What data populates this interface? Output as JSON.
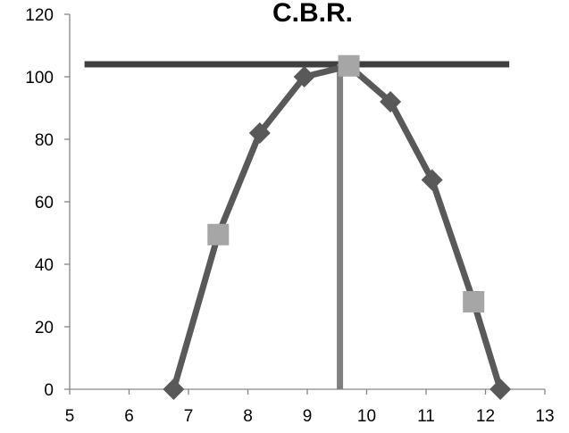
{
  "chart_data": {
    "type": "scatter",
    "title": "C.B.R.",
    "xlabel": "",
    "ylabel": "",
    "xlim": [
      5,
      13
    ],
    "ylim": [
      0,
      120
    ],
    "x_ticks": [
      5,
      6,
      7,
      8,
      9,
      10,
      11,
      12,
      13
    ],
    "y_ticks": [
      0,
      20,
      40,
      60,
      80,
      100,
      120
    ],
    "grid": false,
    "legend": "none",
    "series": [
      {
        "color": "#595959",
        "marker": "diamond",
        "x": [
          6.75,
          7.5,
          8.2,
          8.95,
          9.7,
          10.4,
          11.1,
          11.8,
          12.25
        ],
        "y": [
          0,
          49.5,
          82,
          100,
          103.5,
          92,
          67,
          28,
          0
        ]
      },
      {
        "color": "#a6a6a6",
        "marker": "square",
        "x": [
          7.5,
          9.7,
          11.8
        ],
        "y": [
          49.5,
          103.5,
          28
        ]
      }
    ],
    "reference_lines": {
      "horizontal": {
        "y": 104,
        "x_range": [
          5.25,
          12.4
        ],
        "color": "#404040"
      },
      "vertical": {
        "x": 9.55,
        "y_range": [
          0,
          104
        ],
        "color": "#808080"
      }
    }
  }
}
